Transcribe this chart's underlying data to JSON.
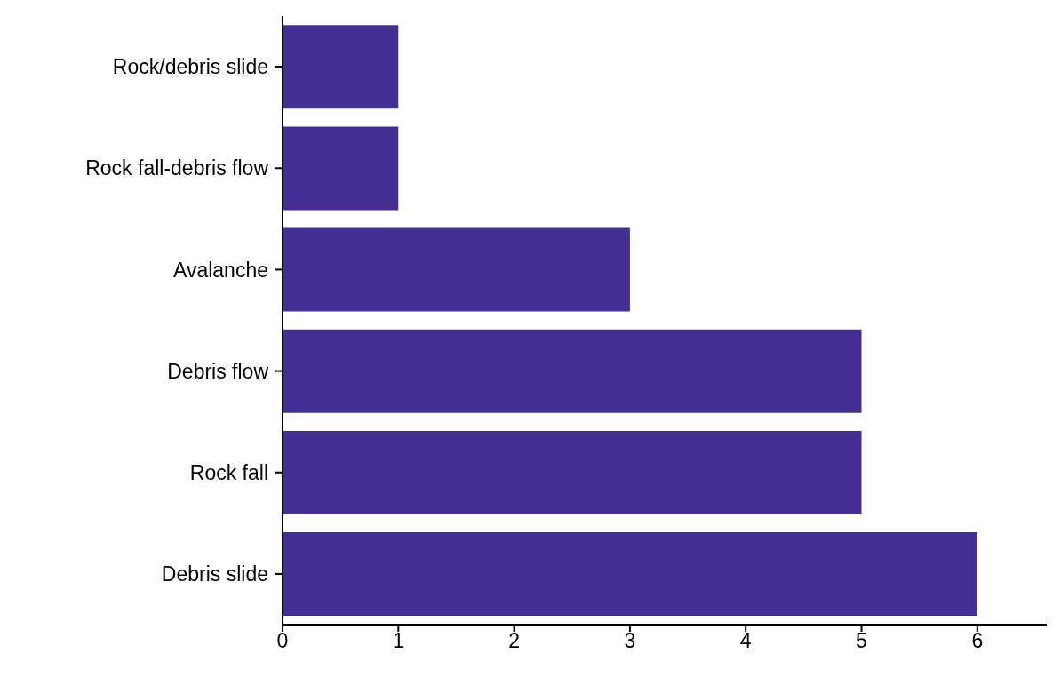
{
  "chart_data": {
    "type": "bar",
    "orientation": "horizontal",
    "categories": [
      "Rock/debris slide",
      "Rock fall-debris flow",
      "Avalanche",
      "Debris flow",
      "Rock fall",
      "Debris slide"
    ],
    "values": [
      1,
      1,
      3,
      5,
      5,
      6
    ],
    "color": "#452f96",
    "xlim": [
      0,
      6.6
    ],
    "xticks": [
      0,
      1,
      2,
      3,
      4,
      5,
      6
    ]
  }
}
